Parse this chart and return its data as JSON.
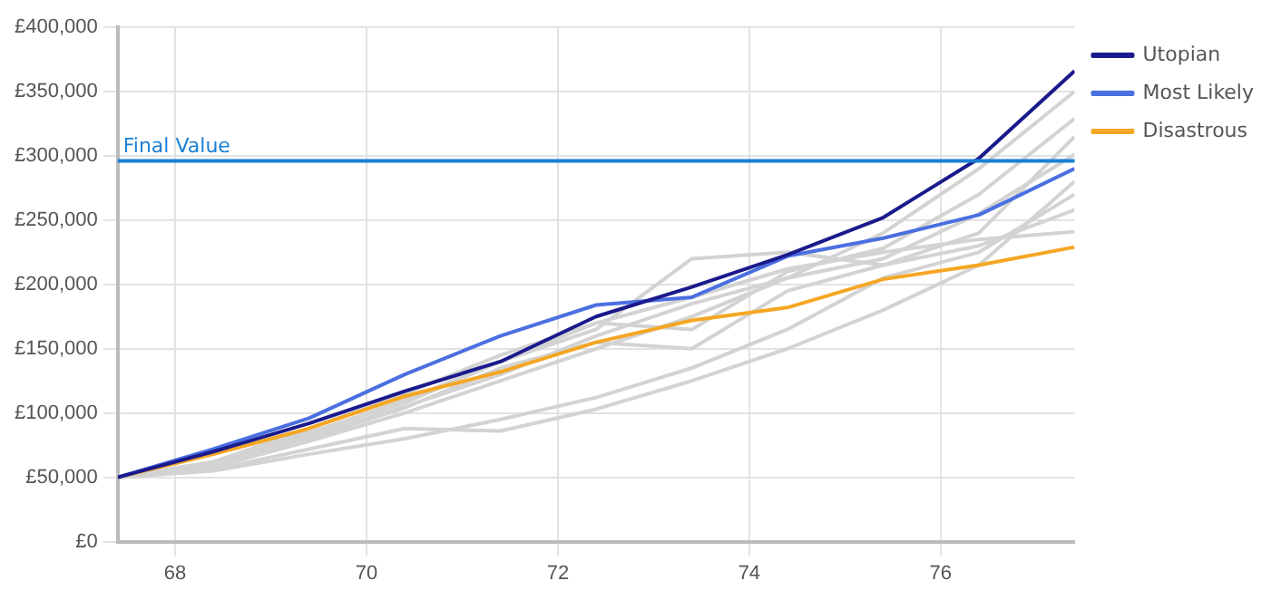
{
  "chart_data": {
    "type": "line",
    "x": [
      67.4,
      68.4,
      69.4,
      70.4,
      71.4,
      72.4,
      73.4,
      74.4,
      75.4,
      76.4,
      77.4
    ],
    "xlim": [
      67.4,
      77.4
    ],
    "xticks": [
      68,
      70,
      72,
      74,
      76
    ],
    "ylim": [
      0,
      400000
    ],
    "yticks": [
      {
        "value": 0,
        "label": "£0"
      },
      {
        "value": 50000,
        "label": "£50,000"
      },
      {
        "value": 100000,
        "label": "£100,000"
      },
      {
        "value": 150000,
        "label": "£150,000"
      },
      {
        "value": 200000,
        "label": "£200,000"
      },
      {
        "value": 250000,
        "label": "£250,000"
      },
      {
        "value": 300000,
        "label": "£300,000"
      },
      {
        "value": 350000,
        "label": "£350,000"
      },
      {
        "value": 400000,
        "label": "£400,000"
      }
    ],
    "series": [
      {
        "name": "Utopian",
        "color": "#1a1a8c",
        "values": [
          50000,
          70000,
          92000,
          117000,
          140000,
          175000,
          198000,
          223000,
          252000,
          298000,
          366000
        ]
      },
      {
        "name": "Most Likely",
        "color": "#4a6fe0",
        "values": [
          50000,
          72000,
          96000,
          130000,
          160000,
          184000,
          190000,
          222000,
          236000,
          254000,
          290000
        ]
      },
      {
        "name": "Disastrous",
        "color": "#f5a623",
        "values": [
          50000,
          68000,
          88000,
          113000,
          132000,
          155000,
          172000,
          182000,
          204000,
          215000,
          229000
        ]
      },
      {
        "color": "#d3d3d3",
        "values": [
          50000,
          62000,
          85000,
          108000,
          140000,
          165000,
          220000,
          225000,
          215000,
          230000,
          258000
        ]
      },
      {
        "color": "#d3d3d3",
        "values": [
          50000,
          60000,
          82000,
          105000,
          130000,
          160000,
          185000,
          205000,
          240000,
          290000,
          350000
        ]
      },
      {
        "color": "#d3d3d3",
        "values": [
          50000,
          62000,
          88000,
          115000,
          145000,
          170000,
          165000,
          210000,
          228000,
          270000,
          329000
        ]
      },
      {
        "color": "#d3d3d3",
        "values": [
          50000,
          60000,
          80000,
          104000,
          135000,
          155000,
          150000,
          195000,
          215000,
          240000,
          315000
        ]
      },
      {
        "color": "#d3d3d3",
        "values": [
          50000,
          58000,
          78000,
          100000,
          125000,
          150000,
          175000,
          205000,
          220000,
          255000,
          301000
        ]
      },
      {
        "color": "#d3d3d3",
        "values": [
          50000,
          56000,
          72000,
          88000,
          86000,
          103000,
          125000,
          150000,
          180000,
          215000,
          280000
        ]
      },
      {
        "color": "#d3d3d3",
        "values": [
          50000,
          55000,
          68000,
          80000,
          95000,
          112000,
          135000,
          165000,
          205000,
          225000,
          270000
        ]
      },
      {
        "color": "#d3d3d3",
        "values": [
          50000,
          60000,
          84000,
          110000,
          140000,
          170000,
          190000,
          212000,
          225000,
          235000,
          241000
        ]
      }
    ],
    "ref_lines": [
      {
        "axis": "y",
        "value": 296000,
        "label": "Final Value",
        "color": "#1a7fd4"
      }
    ],
    "grid": true,
    "legend": "top right",
    "marker": "none",
    "line_style": "solid"
  }
}
